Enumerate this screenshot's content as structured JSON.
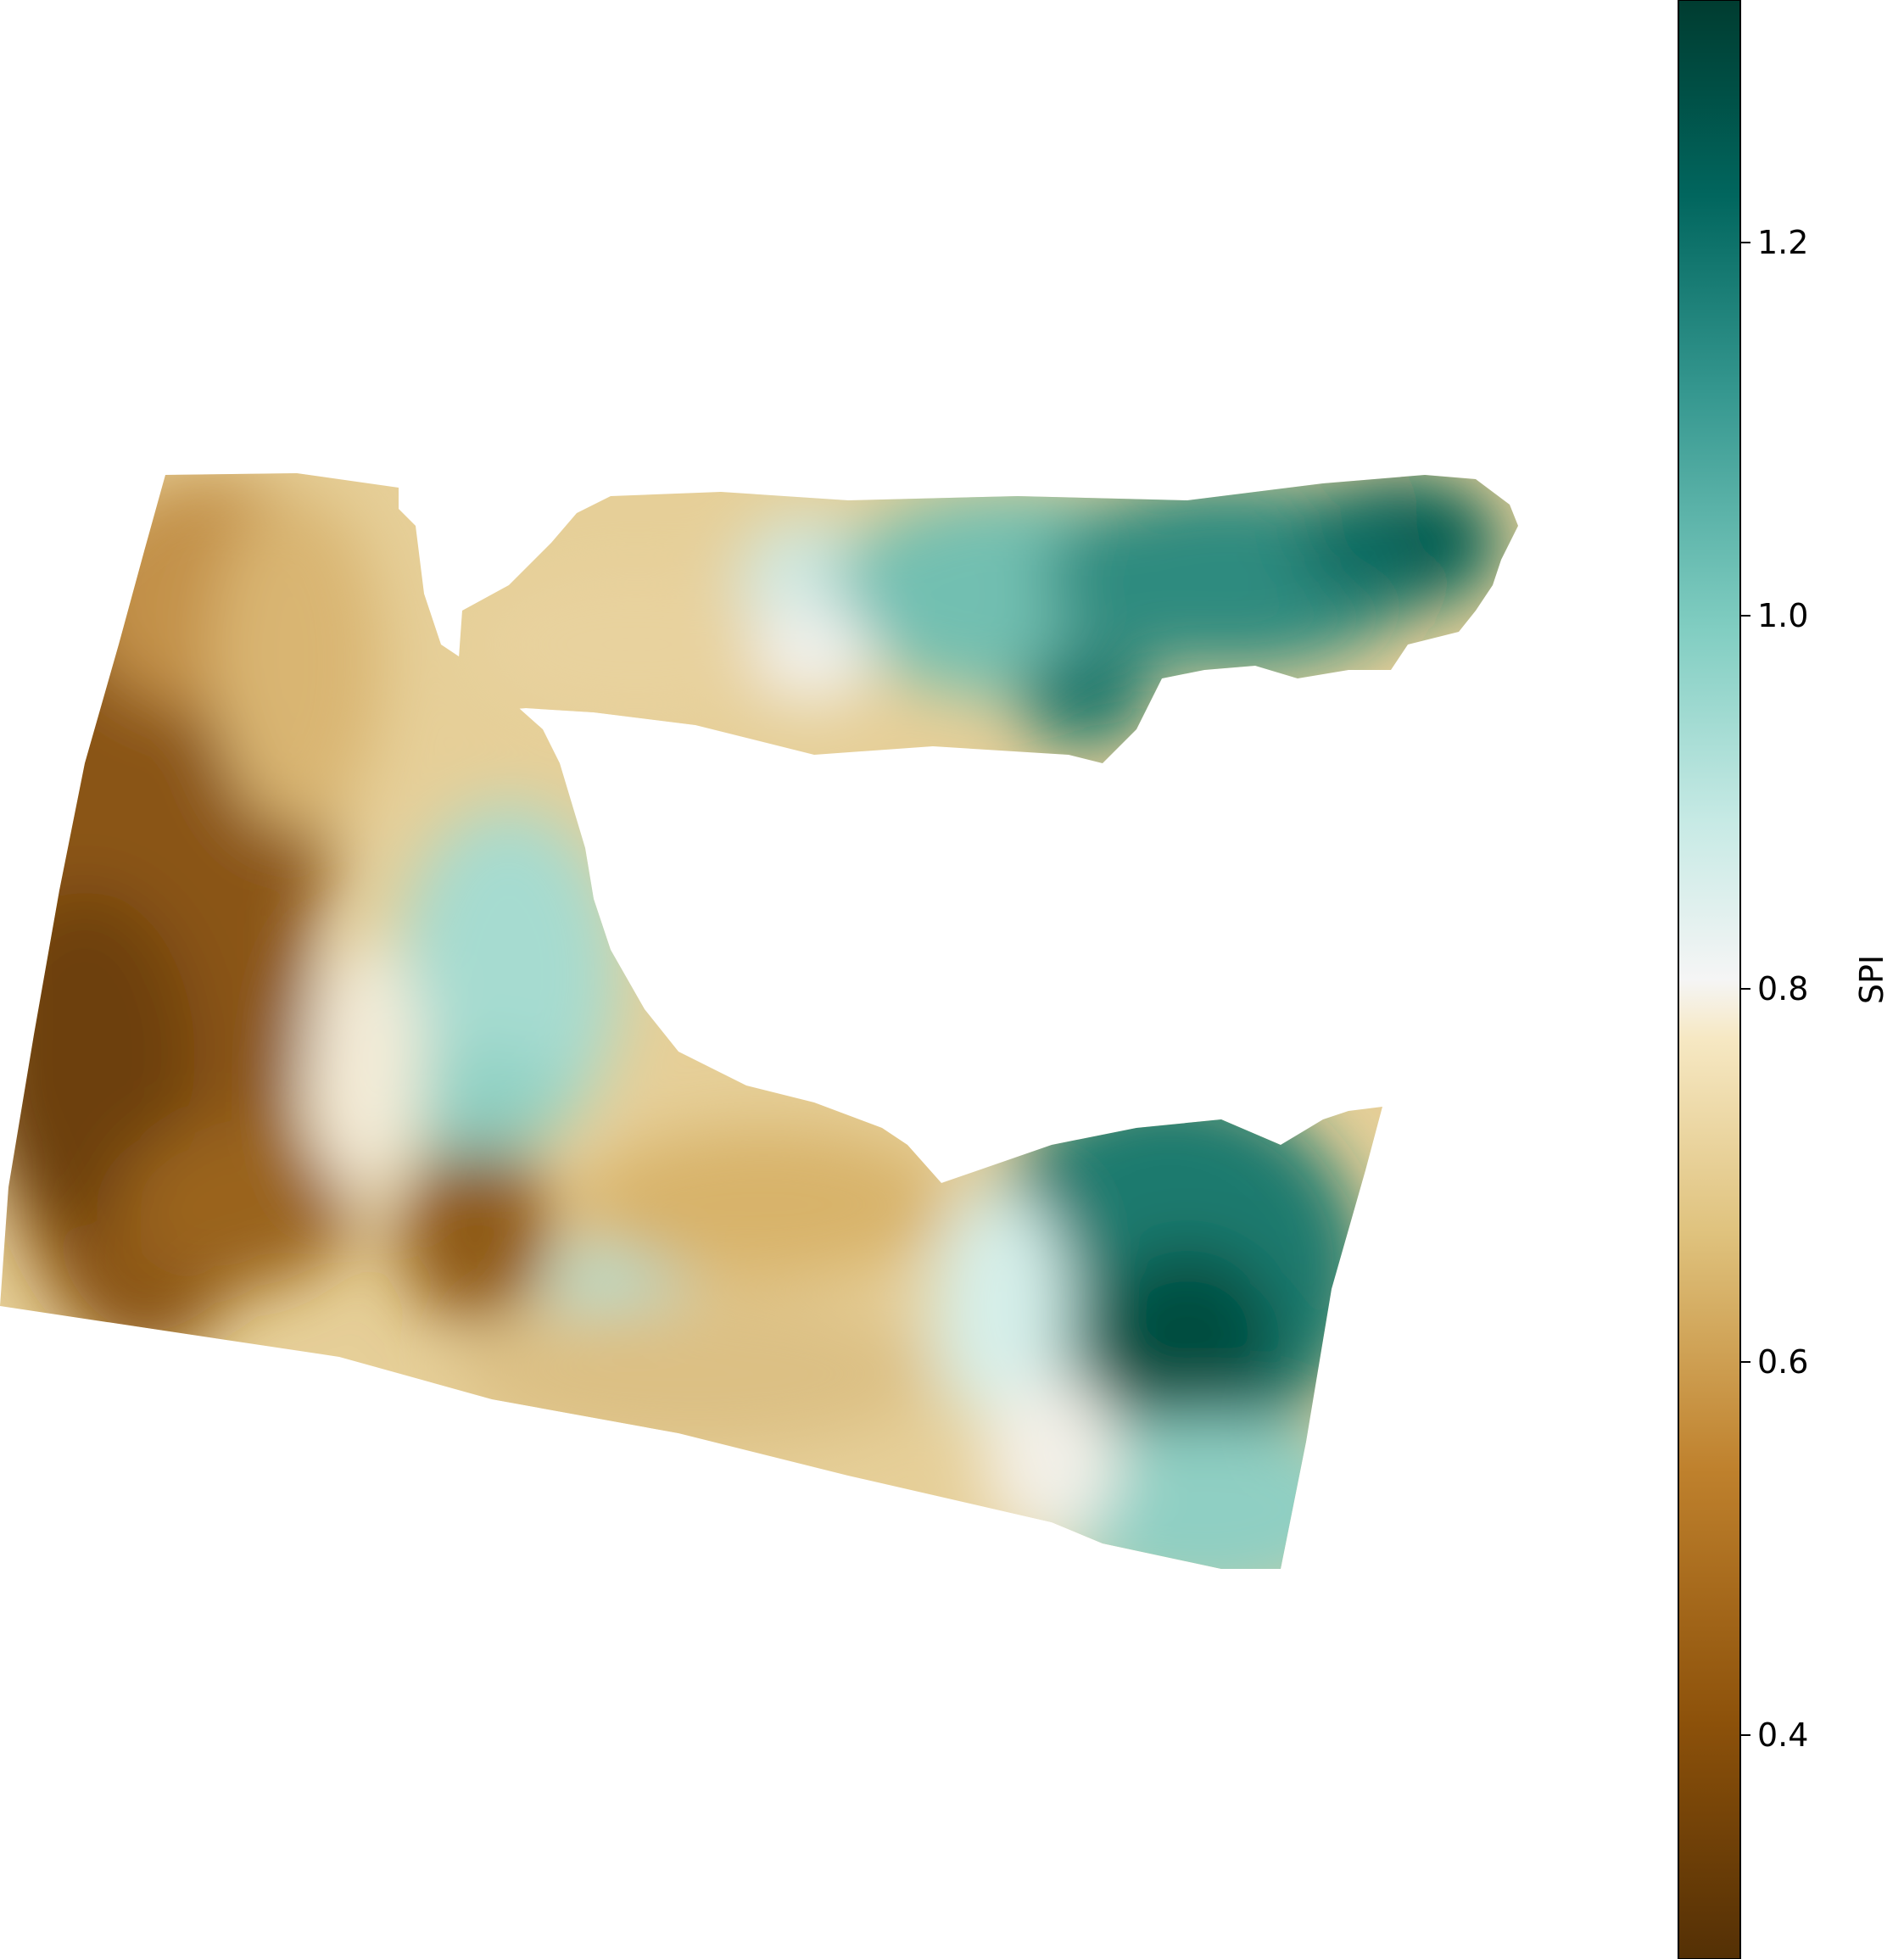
{
  "chart_data": {
    "type": "heatmap",
    "colormap": "BrBG",
    "colorbar": {
      "label": "SPI",
      "range": [
        0.28,
        1.33
      ],
      "ticks": [
        0.4,
        0.6,
        0.8,
        1.0,
        1.2
      ],
      "tick_labels": [
        "0.4",
        "0.6",
        "0.8",
        "1.0",
        "1.2"
      ]
    },
    "field": {
      "description_of_regions": null,
      "west_block_min_value": 0.33,
      "central_lobe_value": 1.05,
      "northeast_arm_max_value": 1.31,
      "southeast_block_max_value": 1.3,
      "southeast_lower_value": 1.02
    }
  }
}
